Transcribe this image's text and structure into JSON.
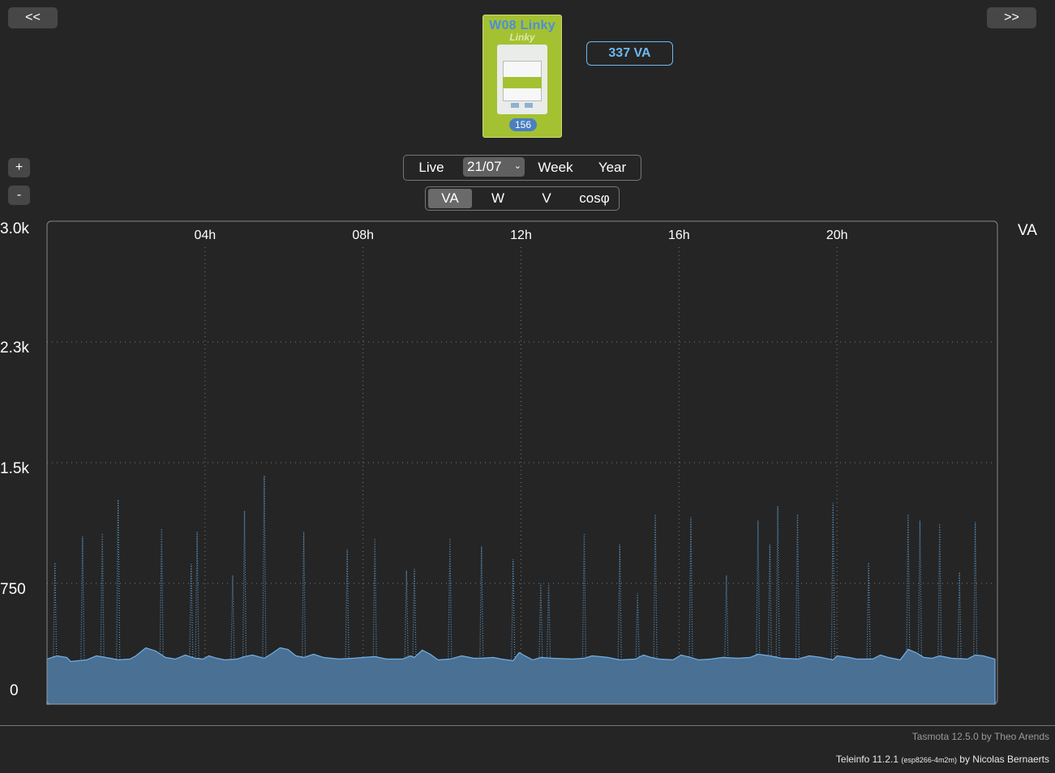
{
  "nav": {
    "prev_label": "<<",
    "next_label": ">>"
  },
  "zoom": {
    "in_label": "+",
    "out_label": "-"
  },
  "device": {
    "title": "W08 Linky",
    "brand": "Linky",
    "badge": "156"
  },
  "current_value": "337 VA",
  "period_tabs": {
    "live": "Live",
    "date": "21/07",
    "week": "Week",
    "year": "Year"
  },
  "unit_tabs": {
    "va": "VA",
    "w": "W",
    "v": "V",
    "cosphi": "cosφ",
    "active": "VA"
  },
  "colors": {
    "background": "#252525",
    "area_fill": "#4a7094",
    "line": "#6fb0e6",
    "peak": "#5b98c8",
    "value_accent": "#6fb8f0"
  },
  "chart_data": {
    "type": "area",
    "unit_label": "VA",
    "ylim": [
      0,
      3000
    ],
    "ytick_labels": [
      "3.0k",
      "2.3k",
      "1.5k",
      "750",
      "0"
    ],
    "yticks": [
      3000,
      2250,
      1500,
      750,
      0
    ],
    "xlim_hours": [
      0,
      24
    ],
    "xtick_labels": [
      "04h",
      "08h",
      "12h",
      "16h",
      "20h"
    ],
    "xticks_hours": [
      4,
      8,
      12,
      16,
      20
    ],
    "grid": true,
    "baseline_va": [
      [
        0.0,
        280
      ],
      [
        0.25,
        300
      ],
      [
        0.5,
        290
      ],
      [
        0.6,
        265
      ],
      [
        1.0,
        275
      ],
      [
        1.25,
        300
      ],
      [
        1.6,
        285
      ],
      [
        1.8,
        275
      ],
      [
        2.1,
        280
      ],
      [
        2.25,
        300
      ],
      [
        2.5,
        350
      ],
      [
        2.75,
        330
      ],
      [
        3.0,
        290
      ],
      [
        3.25,
        280
      ],
      [
        3.5,
        305
      ],
      [
        3.75,
        285
      ],
      [
        3.95,
        280
      ],
      [
        4.1,
        300
      ],
      [
        4.3,
        285
      ],
      [
        4.5,
        275
      ],
      [
        4.8,
        280
      ],
      [
        5.0,
        295
      ],
      [
        5.2,
        305
      ],
      [
        5.5,
        285
      ],
      [
        5.7,
        315
      ],
      [
        5.9,
        350
      ],
      [
        6.1,
        340
      ],
      [
        6.3,
        300
      ],
      [
        6.5,
        290
      ],
      [
        6.75,
        310
      ],
      [
        7.0,
        290
      ],
      [
        7.4,
        280
      ],
      [
        7.75,
        285
      ],
      [
        8.0,
        290
      ],
      [
        8.3,
        295
      ],
      [
        8.6,
        280
      ],
      [
        9.0,
        280
      ],
      [
        9.2,
        300
      ],
      [
        9.3,
        290
      ],
      [
        9.5,
        335
      ],
      [
        9.7,
        310
      ],
      [
        9.9,
        275
      ],
      [
        10.2,
        280
      ],
      [
        10.5,
        300
      ],
      [
        10.8,
        285
      ],
      [
        11.0,
        285
      ],
      [
        11.3,
        290
      ],
      [
        11.5,
        280
      ],
      [
        11.8,
        270
      ],
      [
        11.95,
        320
      ],
      [
        12.1,
        300
      ],
      [
        12.3,
        275
      ],
      [
        12.5,
        290
      ],
      [
        12.8,
        285
      ],
      [
        13.3,
        280
      ],
      [
        13.6,
        285
      ],
      [
        13.8,
        300
      ],
      [
        14.2,
        290
      ],
      [
        14.5,
        275
      ],
      [
        14.9,
        280
      ],
      [
        15.1,
        305
      ],
      [
        15.3,
        290
      ],
      [
        15.5,
        280
      ],
      [
        15.85,
        275
      ],
      [
        16.05,
        305
      ],
      [
        16.3,
        290
      ],
      [
        16.5,
        275
      ],
      [
        16.8,
        280
      ],
      [
        17.1,
        290
      ],
      [
        17.5,
        285
      ],
      [
        17.8,
        290
      ],
      [
        18.0,
        310
      ],
      [
        18.3,
        300
      ],
      [
        18.6,
        285
      ],
      [
        19.0,
        280
      ],
      [
        19.3,
        300
      ],
      [
        19.6,
        290
      ],
      [
        19.9,
        275
      ],
      [
        20.0,
        300
      ],
      [
        20.3,
        290
      ],
      [
        20.5,
        280
      ],
      [
        20.9,
        280
      ],
      [
        21.1,
        305
      ],
      [
        21.3,
        290
      ],
      [
        21.6,
        275
      ],
      [
        21.8,
        340
      ],
      [
        22.0,
        320
      ],
      [
        22.2,
        290
      ],
      [
        22.4,
        285
      ],
      [
        22.6,
        300
      ],
      [
        22.9,
        285
      ],
      [
        23.3,
        280
      ],
      [
        23.5,
        305
      ],
      [
        23.7,
        300
      ],
      [
        24.0,
        280
      ]
    ],
    "peaks_va": [
      [
        0.2,
        880
      ],
      [
        0.9,
        1040
      ],
      [
        1.4,
        1060
      ],
      [
        1.8,
        1270
      ],
      [
        2.9,
        1090
      ],
      [
        3.65,
        870
      ],
      [
        3.8,
        1070
      ],
      [
        4.7,
        800
      ],
      [
        5.0,
        1200
      ],
      [
        5.5,
        1420
      ],
      [
        6.5,
        1070
      ],
      [
        7.6,
        960
      ],
      [
        8.3,
        1030
      ],
      [
        9.1,
        830
      ],
      [
        9.3,
        840
      ],
      [
        10.2,
        1030
      ],
      [
        11.0,
        980
      ],
      [
        11.8,
        900
      ],
      [
        12.5,
        750
      ],
      [
        12.7,
        750
      ],
      [
        13.6,
        1060
      ],
      [
        14.5,
        990
      ],
      [
        14.95,
        690
      ],
      [
        15.4,
        1180
      ],
      [
        16.3,
        1160
      ],
      [
        17.2,
        800
      ],
      [
        18.0,
        1140
      ],
      [
        18.3,
        990
      ],
      [
        18.5,
        1230
      ],
      [
        19.0,
        1180
      ],
      [
        19.9,
        1250
      ],
      [
        20.8,
        880
      ],
      [
        21.8,
        1180
      ],
      [
        22.1,
        1140
      ],
      [
        22.6,
        1120
      ],
      [
        23.1,
        820
      ],
      [
        23.5,
        1130
      ]
    ]
  },
  "footer": {
    "tasmota": "Tasmota 12.5.0 by Theo Arends",
    "teleinfo": "Teleinfo 11.2.1",
    "teleinfo_build": "(esp8266-4m2m)",
    "teleinfo_author": "by Nicolas Bernaerts"
  }
}
